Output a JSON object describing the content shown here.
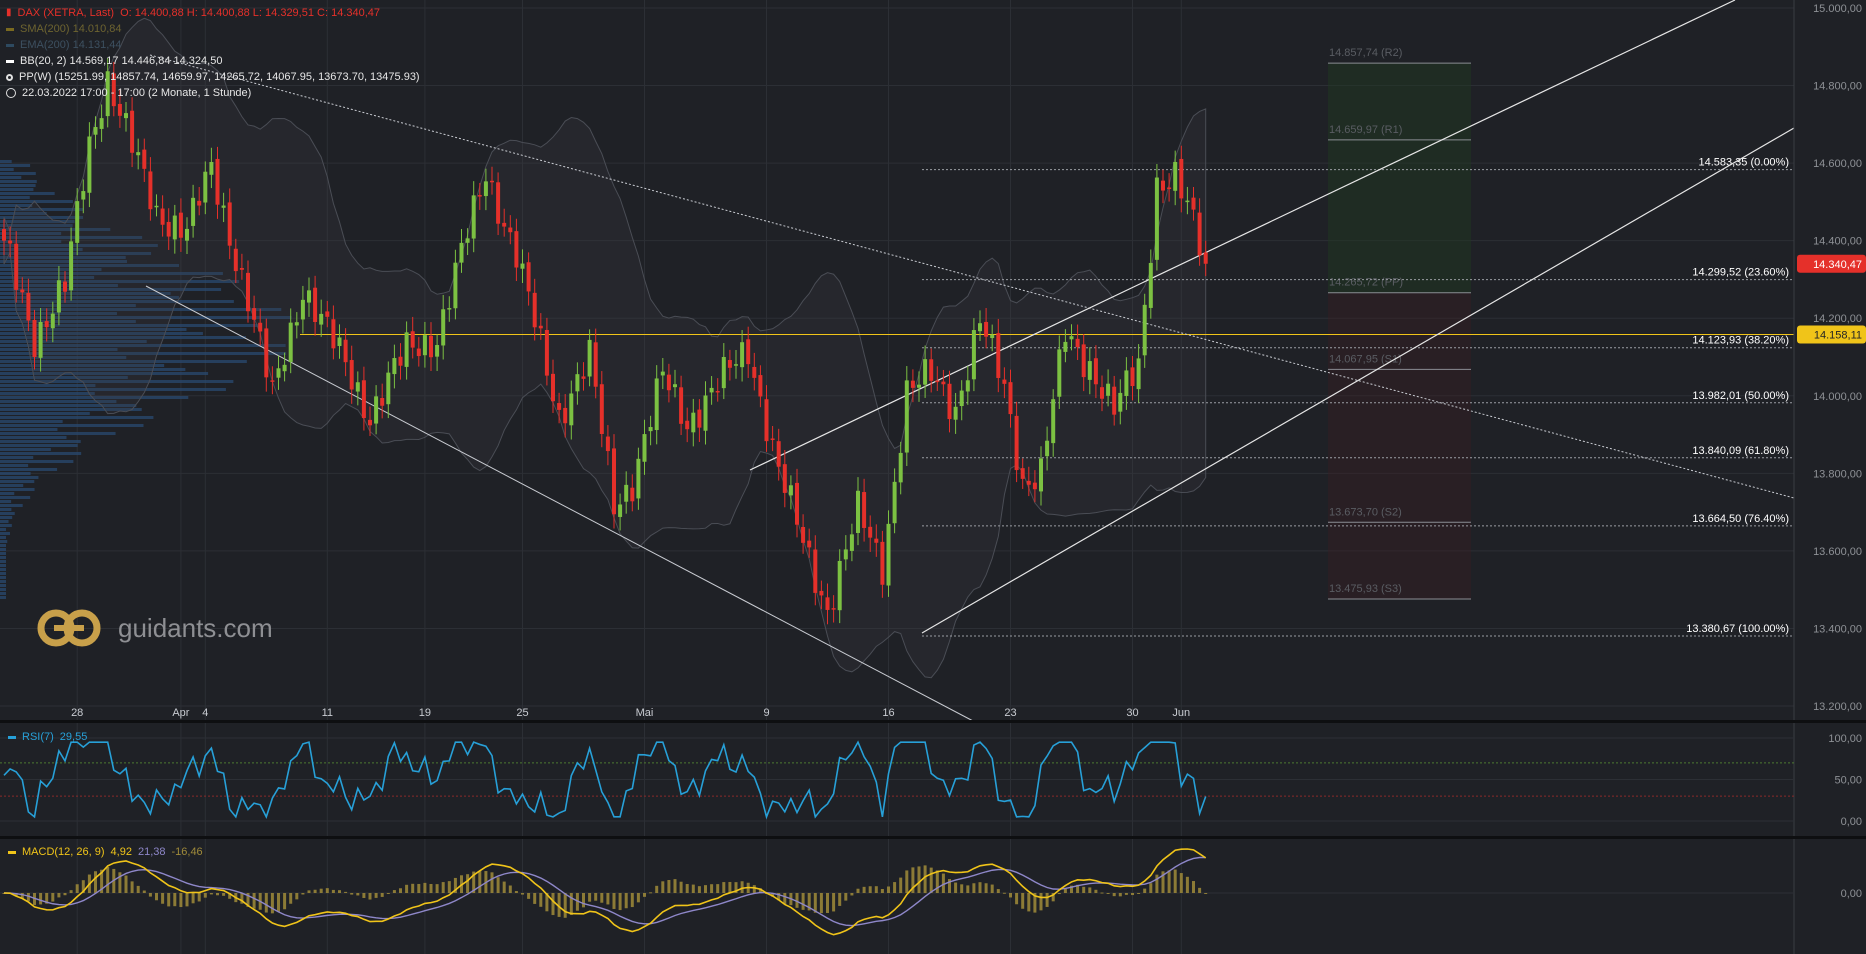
{
  "colors": {
    "bg": "#1f2126",
    "grid": "#2c2f35",
    "up": "#7cc142",
    "down": "#e5302a",
    "rsi": "#27a0d8",
    "macd": "#f0c419",
    "signal": "#8e87c9",
    "hist": "#a08b3a",
    "fib": "#c9ccd2",
    "yellow": "#f0c419",
    "red_badge": "#e5302a"
  },
  "legend": {
    "title": "DAX (XETRA, Last)",
    "ohlc": "O: 14.400,88  H: 14.400,88  L: 14.329,51  C: 14.340,47",
    "sma": "SMA(200)  14.010,84",
    "ema": "EMA(200)  14.131,44",
    "bb": "BB(20, 2)  14.569,17  14.446,84  14.324,50",
    "pp": "PP(W)  (15251.99, 14857.74, 14659.97, 14265.72, 14067.95, 13673.70, 13475.93)",
    "range": "22.03.2022 17:00 - 17:00  (2 Monate, 1 Stunde)"
  },
  "watermark": "guidants.com",
  "rsi_legend": {
    "label": "RSI(7)",
    "value": "29,55"
  },
  "macd_legend": {
    "label": "MACD(12, 26, 9)",
    "v1": "4,92",
    "v2": "21,38",
    "v3": "-16,46"
  },
  "chart_data": {
    "type": "line",
    "title": "DAX (XETRA, Last)",
    "price_axis": {
      "ylim": [
        13200,
        15000
      ],
      "ticks": [
        "13.200,00",
        "13.400,00",
        "13.600,00",
        "13.800,00",
        "14.000,00",
        "14.200,00",
        "14.400,00",
        "14.600,00",
        "14.800,00",
        "15.000,00"
      ],
      "tick_values": [
        13200,
        13400,
        13600,
        13800,
        14000,
        14200,
        14400,
        14600,
        14800,
        15000
      ]
    },
    "x_ticks": [
      "28",
      "Apr",
      "4",
      "11",
      "19",
      "25",
      "Mai",
      "9",
      "16",
      "23",
      "30",
      "Jun"
    ],
    "x_tick_index": [
      12,
      29,
      33,
      53,
      69,
      85,
      105,
      125,
      145,
      165,
      185,
      193
    ],
    "bar_count": 198,
    "last_price": {
      "value": 14340.47,
      "label": "14.340,47"
    },
    "marker_price": {
      "value": 14158.11,
      "label": "14.158,11"
    },
    "fib_levels": [
      {
        "value": 14583.35,
        "label": "14.583,35 (0.00%)"
      },
      {
        "value": 14299.52,
        "label": "14.299,52 (23.60%)"
      },
      {
        "value": 14123.93,
        "label": "14.123,93 (38.20%)"
      },
      {
        "value": 13982.01,
        "label": "13.982,01 (50.00%)"
      },
      {
        "value": 13840.09,
        "label": "13.840,09 (61.80%)"
      },
      {
        "value": 13664.5,
        "label": "13.664,50 (76.40%)"
      },
      {
        "value": 13380.67,
        "label": "13.380,67 (100.00%)"
      }
    ],
    "pivot_levels": [
      {
        "value": 14857.74,
        "label": "14.857,74 (R2)"
      },
      {
        "value": 14659.97,
        "label": "14.659,97 (R1)"
      },
      {
        "value": 14265.72,
        "label": "14.265,72 (PP)"
      },
      {
        "value": 14067.95,
        "label": "14.067,95 (S1)"
      },
      {
        "value": 13673.7,
        "label": "13.673,70 (S2)"
      },
      {
        "value": 13475.93,
        "label": "13.475,93 (S3)"
      }
    ],
    "close_anchors": [
      [
        0,
        14400
      ],
      [
        5,
        14150
      ],
      [
        10,
        14280
      ],
      [
        14,
        14650
      ],
      [
        17,
        14820
      ],
      [
        21,
        14640
      ],
      [
        25,
        14470
      ],
      [
        30,
        14430
      ],
      [
        34,
        14580
      ],
      [
        40,
        14250
      ],
      [
        44,
        14000
      ],
      [
        49,
        14280
      ],
      [
        56,
        14080
      ],
      [
        60,
        13950
      ],
      [
        66,
        14120
      ],
      [
        71,
        14150
      ],
      [
        79,
        14580
      ],
      [
        84,
        14360
      ],
      [
        88,
        14130
      ],
      [
        91,
        13950
      ],
      [
        96,
        14100
      ],
      [
        100,
        13720
      ],
      [
        103,
        13780
      ],
      [
        108,
        14050
      ],
      [
        112,
        13930
      ],
      [
        117,
        14030
      ],
      [
        122,
        14120
      ],
      [
        127,
        13810
      ],
      [
        131,
        13620
      ],
      [
        135,
        13450
      ],
      [
        140,
        13700
      ],
      [
        144,
        13560
      ],
      [
        148,
        14010
      ],
      [
        152,
        14050
      ],
      [
        156,
        13970
      ],
      [
        160,
        14190
      ],
      [
        164,
        14020
      ],
      [
        167,
        13780
      ],
      [
        170,
        13800
      ],
      [
        174,
        14160
      ],
      [
        178,
        14080
      ],
      [
        182,
        13960
      ],
      [
        186,
        14080
      ],
      [
        189,
        14550
      ],
      [
        192,
        14560
      ],
      [
        195,
        14440
      ],
      [
        197,
        14340
      ]
    ],
    "rsi": {
      "label": "RSI(7)",
      "last": 29.55,
      "ticks": [
        "0,00",
        "50,00",
        "100,00"
      ],
      "tick_values": [
        0,
        50,
        100
      ]
    },
    "macd": {
      "label": "MACD(12, 26, 9)",
      "values": [
        4.92,
        21.38,
        -16.46
      ],
      "ticks": [
        "0,00"
      ]
    }
  }
}
